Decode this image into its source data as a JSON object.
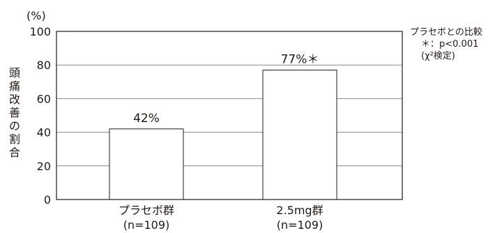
{
  "chart_data": {
    "type": "bar",
    "categories": [
      "プラセボ群",
      "2.5mg群"
    ],
    "category_sublabels": [
      "(n=109)",
      "(n=109)"
    ],
    "values": [
      42,
      77
    ],
    "value_labels": [
      "42%",
      "77%＊"
    ],
    "ylabel": "頭痛改善の割合",
    "yunit": "(%)",
    "ylim": [
      0,
      100
    ],
    "yticks": [
      0,
      20,
      40,
      60,
      80,
      100
    ],
    "grid": true,
    "bar_color": "#ffffff",
    "line_color": "#231815",
    "grid_color": "#888888"
  },
  "note": {
    "line1": "プラセボとの比較",
    "line2": "＊：p<0.001",
    "line3": "(χ²検定)"
  }
}
